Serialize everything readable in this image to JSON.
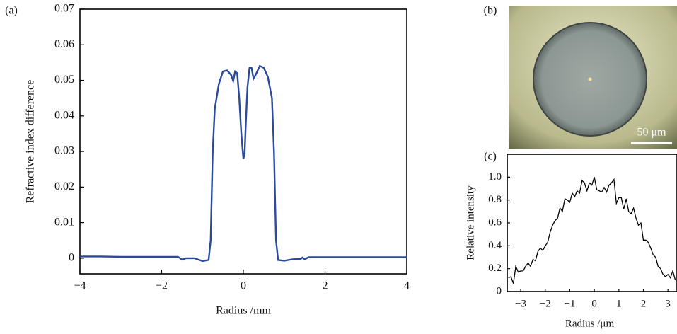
{
  "chart_data": [
    {
      "type": "line",
      "label": "(a)",
      "x_label": "Radius /mm",
      "y_label": "Refractive index difference",
      "xlim": [
        -4,
        4
      ],
      "ylim": [
        -0.0044,
        0.07
      ],
      "xticks": [
        {
          "value": -4,
          "label": "−4"
        },
        {
          "value": -2,
          "label": "−2"
        },
        0,
        2,
        4
      ],
      "yticks": [
        0,
        0.01,
        0.02,
        0.03,
        0.04,
        0.05,
        0.06,
        0.07
      ],
      "x": [
        -4,
        -3.5,
        -3,
        -2.5,
        -2,
        -1.6,
        -1.5,
        -1.4,
        -1.2,
        -1,
        -0.85,
        -0.8,
        -0.75,
        -0.7,
        -0.6,
        -0.5,
        -0.4,
        -0.3,
        -0.25,
        -0.2,
        -0.15,
        -0.1,
        -0.05,
        0,
        0.03,
        0.06,
        0.1,
        0.15,
        0.2,
        0.25,
        0.3,
        0.4,
        0.45,
        0.5,
        0.6,
        0.7,
        0.75,
        0.8,
        0.85,
        1,
        1.2,
        1.4,
        1.45,
        1.5,
        1.6,
        2,
        2.5,
        3,
        3.5,
        4
      ],
      "series": [
        {
          "color": "#2a4a9e",
          "values": [
            0.0005,
            0.0005,
            0.0004,
            0.0004,
            0.0004,
            0.0004,
            -0.0004,
            0,
            0,
            -0.0008,
            -0.0005,
            0.005,
            0.03,
            0.042,
            0.049,
            0.0525,
            0.0528,
            0.0515,
            0.0498,
            0.0525,
            0.052,
            0.045,
            0.035,
            0.028,
            0.029,
            0.038,
            0.048,
            0.0535,
            0.0535,
            0.0505,
            0.0515,
            0.054,
            0.0538,
            0.0535,
            0.051,
            0.045,
            0.03,
            0.005,
            -0.0005,
            -0.0007,
            -0.0003,
            -0.0002,
            0.0002,
            -0.0003,
            0.0003,
            0.0003,
            0.0003,
            0.0003,
            0.0003,
            0.0003
          ]
        }
      ]
    },
    {
      "type": "line",
      "label": "(c)",
      "x_label": "Radius /μm",
      "y_label": "Relative intensity",
      "xlim": [
        -3.55,
        3.37
      ],
      "ylim": [
        0,
        1.2
      ],
      "xticks": [
        {
          "value": -3,
          "label": "−3"
        },
        {
          "value": -2,
          "label": "−2"
        },
        {
          "value": -1,
          "label": "−1"
        },
        0,
        1,
        2,
        3
      ],
      "yticks": [
        0,
        0.2,
        0.4,
        0.6,
        0.8,
        {
          "value": 1,
          "label": "1.0"
        }
      ],
      "x": [
        -3.5,
        -3.4,
        -3.3,
        -3.2,
        -3.1,
        -3.0,
        -2.9,
        -2.8,
        -2.7,
        -2.6,
        -2.5,
        -2.4,
        -2.3,
        -2.2,
        -2.1,
        -2.0,
        -1.9,
        -1.8,
        -1.7,
        -1.6,
        -1.5,
        -1.4,
        -1.3,
        -1.2,
        -1.1,
        -1.0,
        -0.9,
        -0.8,
        -0.7,
        -0.6,
        -0.5,
        -0.4,
        -0.3,
        -0.2,
        -0.1,
        0,
        0.1,
        0.2,
        0.3,
        0.4,
        0.5,
        0.6,
        0.7,
        0.8,
        0.9,
        1.0,
        1.1,
        1.2,
        1.3,
        1.4,
        1.5,
        1.6,
        1.7,
        1.8,
        1.9,
        2.0,
        2.1,
        2.2,
        2.3,
        2.4,
        2.5,
        2.6,
        2.7,
        2.8,
        2.9,
        3.0,
        3.1,
        3.2,
        3.3
      ],
      "series": [
        {
          "color": "#000000",
          "values": [
            0.12,
            0.13,
            0.07,
            0.22,
            0.17,
            0.18,
            0.18,
            0.22,
            0.25,
            0.22,
            0.28,
            0.27,
            0.35,
            0.38,
            0.36,
            0.4,
            0.43,
            0.52,
            0.58,
            0.62,
            0.64,
            0.73,
            0.7,
            0.81,
            0.8,
            0.78,
            0.86,
            0.83,
            0.88,
            0.86,
            0.97,
            0.95,
            0.88,
            0.95,
            0.93,
            1.0,
            0.89,
            0.88,
            0.87,
            0.91,
            0.87,
            0.93,
            0.95,
            0.98,
            0.77,
            0.82,
            0.82,
            0.72,
            0.81,
            0.7,
            0.68,
            0.73,
            0.64,
            0.58,
            0.6,
            0.45,
            0.45,
            0.43,
            0.38,
            0.32,
            0.3,
            0.22,
            0.2,
            0.15,
            0.13,
            0.15,
            0.12,
            0.18,
            0.1
          ]
        }
      ]
    }
  ],
  "image": {
    "label": "(b)",
    "scale_bar": "50 μm"
  }
}
